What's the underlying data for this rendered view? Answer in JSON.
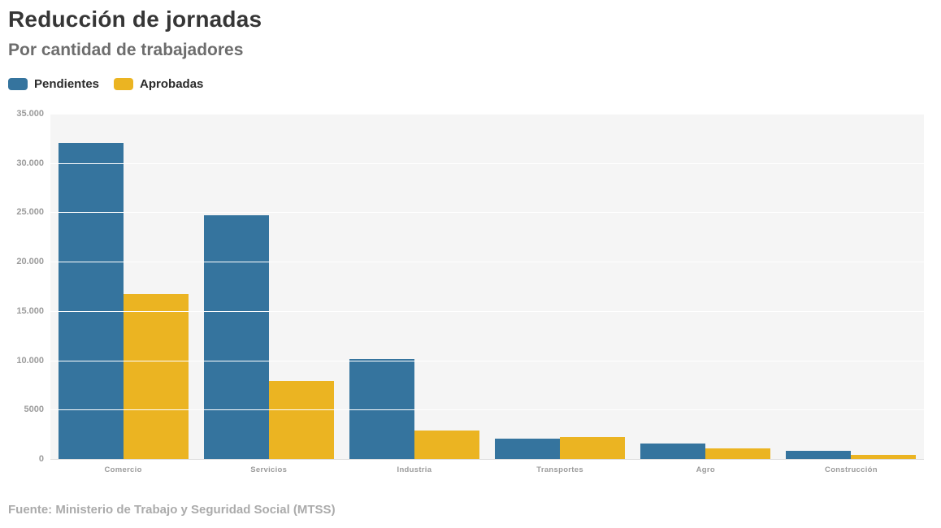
{
  "header": {
    "title": "Reducción de jornadas",
    "subtitle": "Por cantidad de trabajadores"
  },
  "legend": {
    "items": [
      {
        "label": "Pendientes",
        "color": "#35749e"
      },
      {
        "label": "Aprobadas",
        "color": "#ebb422"
      }
    ]
  },
  "footer": {
    "source": "Fuente: Ministerio de Trabajo y Seguridad Social (MTSS)"
  },
  "colors": {
    "pendientes": "#35749e",
    "aprobadas": "#ebb422",
    "plot_background": "#f5f5f5",
    "gridline": "#ffffff",
    "axis_line": "#dcdcdc",
    "title_text": "#363636",
    "subtitle_text": "#6d6d6d",
    "tick_text": "#9b9b9b",
    "source_text": "#ababab"
  },
  "chart_data": {
    "type": "bar",
    "title": "Reducción de jornadas",
    "subtitle": "Por cantidad de trabajadores",
    "categories": [
      "Comercio",
      "Servicios",
      "Industria",
      "Transportes",
      "Agro",
      "Construcción"
    ],
    "series": [
      {
        "name": "Pendientes",
        "color": "#35749e",
        "values": [
          32000,
          24700,
          10100,
          2100,
          1600,
          800
        ]
      },
      {
        "name": "Aprobadas",
        "color": "#ebb422",
        "values": [
          16700,
          7900,
          2900,
          2200,
          1100,
          400
        ]
      }
    ],
    "xlabel": "",
    "ylabel": "",
    "ylim": [
      0,
      35000
    ],
    "yticks": {
      "values": [
        0,
        5000,
        10000,
        15000,
        20000,
        25000,
        30000,
        35000
      ],
      "labels": [
        "0",
        "5000",
        "10.000",
        "15.000",
        "20.000",
        "25.000",
        "30.000",
        "35.000"
      ]
    },
    "grid": true,
    "legend_position": "top-left",
    "source": "Fuente: Ministerio de Trabajo y Seguridad Social (MTSS)"
  }
}
